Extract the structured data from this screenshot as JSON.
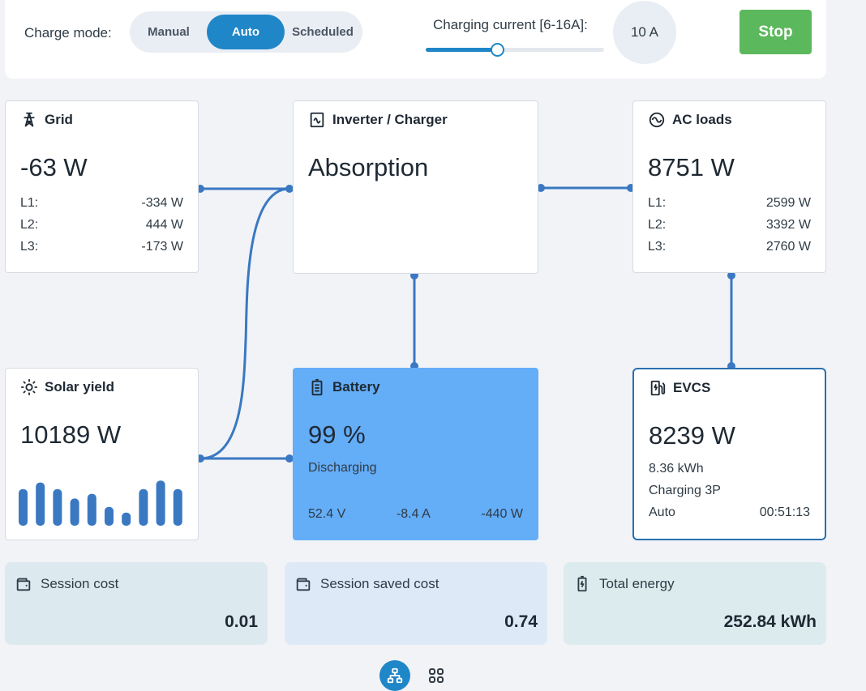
{
  "topbar": {
    "charge_mode_label": "Charge mode:",
    "modes": [
      "Manual",
      "Auto",
      "Scheduled"
    ],
    "active_mode": "Auto",
    "charging_current_label": "Charging current [6-16A]:",
    "slider": {
      "min": 6,
      "max": 16,
      "value": 10
    },
    "current_value": "10 A",
    "stop_label": "Stop",
    "accent_color": "#1f86c7",
    "stop_color": "#5cb85c"
  },
  "grid": {
    "title": "Grid",
    "icon": "transmission-tower-icon",
    "total": "-63 W",
    "phases": [
      {
        "label": "L1:",
        "value": "-334 W"
      },
      {
        "label": "L2:",
        "value": "444 W"
      },
      {
        "label": "L3:",
        "value": "-173 W"
      }
    ]
  },
  "inverter": {
    "title": "Inverter / Charger",
    "icon": "inverter-icon",
    "state": "Absorption"
  },
  "ac_loads": {
    "title": "AC loads",
    "icon": "sine-wave-icon",
    "total": "8751 W",
    "phases": [
      {
        "label": "L1:",
        "value": "2599 W"
      },
      {
        "label": "L2:",
        "value": "3392 W"
      },
      {
        "label": "L3:",
        "value": "2760 W"
      }
    ]
  },
  "solar": {
    "title": "Solar yield",
    "icon": "sun-icon",
    "total": "10189 W",
    "bars": [
      0.78,
      0.92,
      0.78,
      0.58,
      0.68,
      0.4,
      0.28,
      0.78,
      0.96,
      0.78
    ]
  },
  "battery": {
    "title": "Battery",
    "icon": "battery-icon",
    "soc": "99 %",
    "state": "Discharging",
    "voltage": "52.4 V",
    "current": "-8.4 A",
    "power": "-440 W",
    "color": "#64adf7"
  },
  "evcs": {
    "title": "EVCS",
    "icon": "ev-charger-icon",
    "power": "8239 W",
    "energy": "8.36 kWh",
    "status": "Charging 3P",
    "mode": "Auto",
    "time": "00:51:13"
  },
  "bottom": {
    "session_cost": {
      "label": "Session cost",
      "value": "0.01",
      "icon": "wallet-icon"
    },
    "session_saved": {
      "label": "Session saved cost",
      "value": "0.74",
      "icon": "wallet-icon"
    },
    "total_energy": {
      "label": "Total energy",
      "value": "252.84 kWh",
      "icon": "battery-charge-icon"
    }
  },
  "nav": {
    "items": [
      {
        "icon": "flow-diagram-icon",
        "active": true
      },
      {
        "icon": "grid-icon",
        "active": false
      }
    ]
  },
  "colors": {
    "line": "#3a78c2",
    "card_bg": "#ffffff",
    "page_bg": "#f1f3f7"
  }
}
